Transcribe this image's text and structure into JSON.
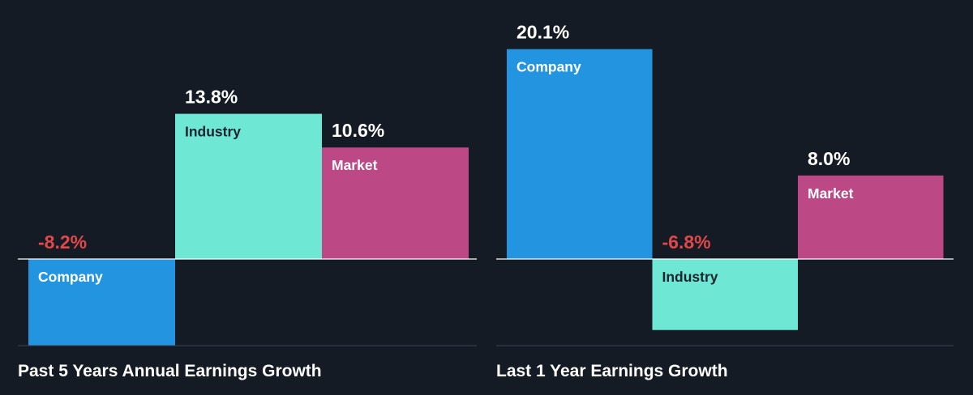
{
  "colors": {
    "background": "#151b24",
    "company": "#2394e0",
    "industry": "#6ee8d4",
    "market": "#bd4886",
    "positive_value_text": "#ffffff",
    "negative_value_text": "#e0484a",
    "light_bar_label_text": "#ffffff",
    "dark_bar_label_text": "#1c2430",
    "baseline": "#ffffff",
    "separator": "#3a4250"
  },
  "chart_data": [
    {
      "type": "bar",
      "title": "Past 5 Years Annual Earnings Growth",
      "categories": [
        "Company",
        "Industry",
        "Market"
      ],
      "values": [
        -8.2,
        13.8,
        10.6
      ],
      "value_labels": [
        "-8.2%",
        "13.8%",
        "10.6%"
      ],
      "unit": "%",
      "ylim": [
        -10,
        15
      ],
      "grid": false,
      "legend": "none"
    },
    {
      "type": "bar",
      "title": "Last 1 Year Earnings Growth",
      "categories": [
        "Company",
        "Industry",
        "Market"
      ],
      "values": [
        20.1,
        -6.8,
        8.0
      ],
      "value_labels": [
        "20.1%",
        "-6.8%",
        "8.0%"
      ],
      "unit": "%",
      "ylim": [
        -8,
        20.1
      ],
      "grid": false,
      "legend": "none"
    }
  ]
}
